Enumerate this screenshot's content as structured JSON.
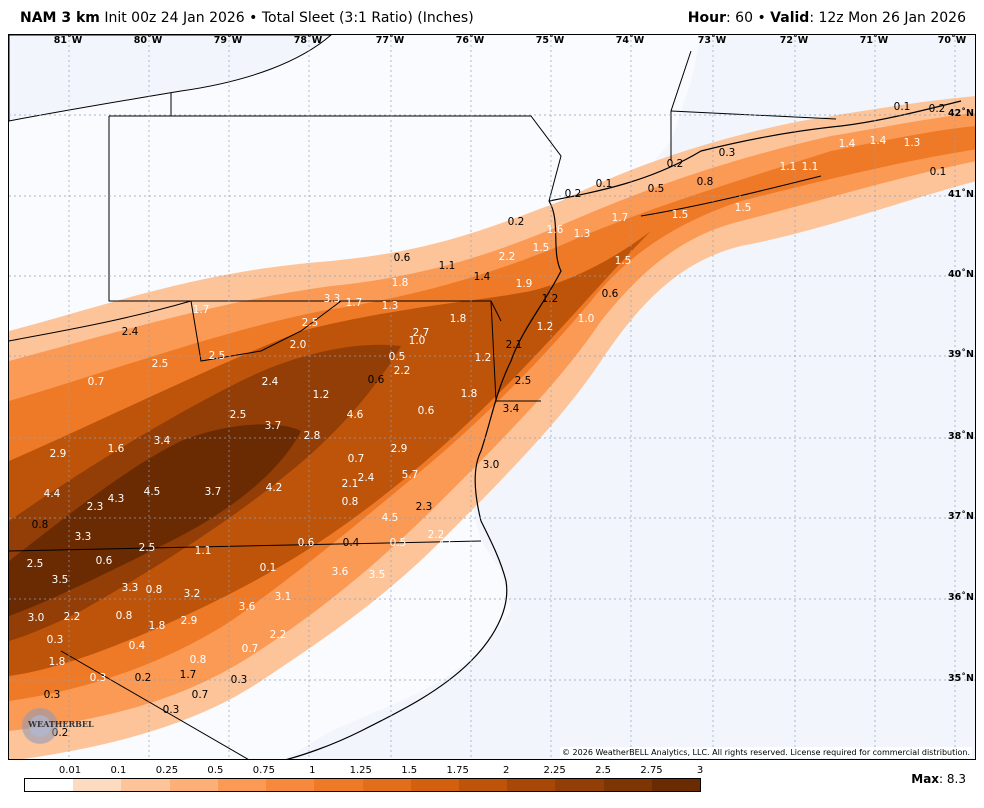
{
  "header": {
    "model": "NAM 3 km",
    "init": "Init 00z 24 Jan 2026",
    "bullet": "•",
    "product": "Total Sleet (3:1 Ratio) (Inches)",
    "hour_label": "Hour",
    "hour_value": ": 60",
    "valid_label": "Valid",
    "valid_value": ": 12z Mon 26 Jan 2026"
  },
  "map": {
    "longitude_labels": [
      "81˚W",
      "80˚W",
      "79˚W",
      "78˚W",
      "77˚W",
      "76˚W",
      "75˚W",
      "74˚W",
      "73˚W",
      "72˚W",
      "71˚W",
      "70˚W"
    ],
    "latitude_labels": [
      "42˚N",
      "41˚N",
      "40˚N",
      "39˚N",
      "38˚N",
      "37˚N",
      "36˚N",
      "35˚N"
    ],
    "value_labels": [
      "0.1",
      "0.2",
      "0.1",
      "0.3",
      "0.2",
      "0.1",
      "0.5",
      "0.8",
      "1.4",
      "1.3",
      "1.4",
      "1.1",
      "1.1",
      "0.2",
      "1.7",
      "1.5",
      "1.5",
      "0.2",
      "1.6",
      "1.3",
      "1.5",
      "0.6",
      "1.1",
      "1.4",
      "2.2",
      "1.5",
      "1.8",
      "1.9",
      "0.6",
      "3.3",
      "1.7",
      "1.3",
      "1.2",
      "1.7",
      "2.5",
      "1.8",
      "1.0",
      "1.2",
      "2.4",
      "2.7",
      "1.0",
      "2.0",
      "1.2",
      "2.1",
      "2.5",
      "0.5",
      "2.5",
      "2.2",
      "2.4",
      "0.6",
      "0.7",
      "2.5",
      "1.2",
      "1.8",
      "0.6",
      "3.4",
      "2.5",
      "3.7",
      "2.8",
      "4.6",
      "3.4",
      "1.6",
      "2.9",
      "2.9",
      "0.7",
      "3.0",
      "2.1",
      "2.4",
      "5.7",
      "4.4",
      "4.5",
      "3.7",
      "4.2",
      "2.3",
      "4.3",
      "0.8",
      "0.8",
      "2.3",
      "4.5",
      "3.3",
      "2.5",
      "1.1",
      "0.6",
      "0.4",
      "0.5",
      "2.2",
      "4.6",
      "2.5",
      "0.6",
      "0.1",
      "3.6",
      "3.5",
      "3.5",
      "3.3",
      "0.8",
      "3.2",
      "3.6",
      "3.0",
      "2.2",
      "0.8",
      "2.9",
      "3.1",
      "1.8",
      "0.3",
      "0.4",
      "2.2",
      "0.7",
      "1.8",
      "0.8",
      "0.3",
      "0.2",
      "1.7",
      "0.3",
      "0.3",
      "0.7",
      "0.3",
      "0.2"
    ],
    "copyright": "© 2026 WeatherBELL Analytics, LLC. All rights reserved. License required for commercial distribution.",
    "logo_text": "WEATHERBELL"
  },
  "legend": {
    "ticks": [
      "0.01",
      "0.1",
      "0.25",
      "0.5",
      "0.75",
      "1",
      "1.25",
      "1.5",
      "1.75",
      "2",
      "2.25",
      "2.5",
      "2.75",
      "3"
    ],
    "colors": [
      "#ffffff",
      "#fddbc0",
      "#fdc49a",
      "#fcaf76",
      "#fb9a55",
      "#f7893c",
      "#ee7a27",
      "#e26d1a",
      "#d2600f",
      "#be540a",
      "#a84808",
      "#933e06",
      "#7e3504",
      "#6a2b03"
    ]
  },
  "max": {
    "label": "Max",
    "value": ": 8.3"
  }
}
